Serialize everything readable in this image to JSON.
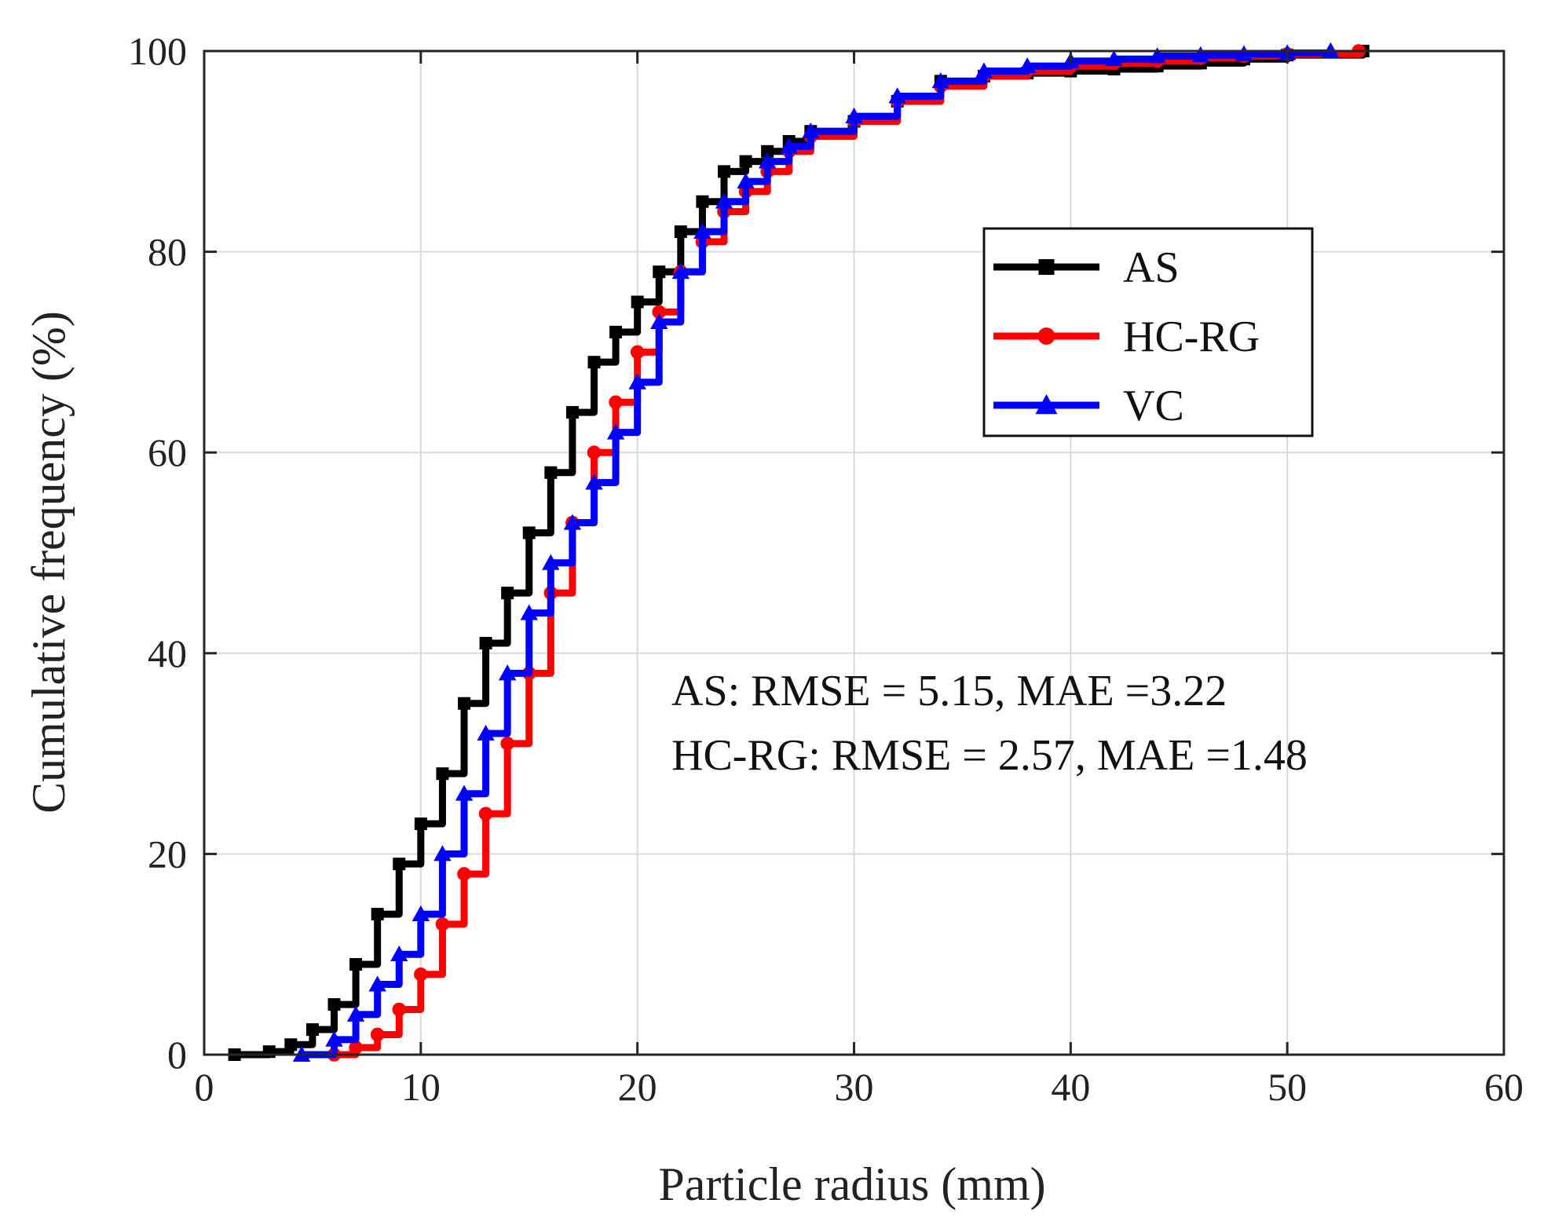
{
  "chart_data": {
    "type": "line",
    "title": "",
    "xlabel": "Particle radius (mm)",
    "ylabel": "Cumulative frequency (%)",
    "xlim": [
      0,
      60
    ],
    "ylim": [
      0,
      100
    ],
    "xticks": [
      "0",
      "10",
      "20",
      "30",
      "40",
      "50",
      "60"
    ],
    "yticks": [
      "0",
      "20",
      "40",
      "60",
      "80",
      "100"
    ],
    "grid": true,
    "legend_position": "upper-right",
    "series": [
      {
        "name": "AS",
        "color": "#000000",
        "marker": "square",
        "x": [
          1.4,
          3,
          4,
          5,
          6,
          7,
          8,
          9,
          10,
          11,
          12,
          13,
          14,
          15,
          16,
          17,
          18,
          19,
          20,
          21,
          22,
          23,
          24,
          25,
          26,
          27,
          28,
          30,
          32,
          34,
          36,
          38,
          40,
          42,
          44,
          46,
          48,
          50,
          53.5
        ],
        "values": [
          0,
          0.3,
          1,
          2.5,
          5,
          9,
          14,
          19,
          23,
          28,
          35,
          41,
          46,
          52,
          58,
          64,
          69,
          72,
          75,
          78,
          82,
          85,
          88,
          89,
          90,
          91,
          92,
          93,
          95,
          97,
          97.5,
          97.8,
          98,
          98.2,
          98.5,
          98.8,
          99.2,
          99.6,
          100
        ]
      },
      {
        "name": "HC-RG",
        "color": "#ff0000",
        "marker": "circle",
        "x": [
          6,
          7,
          8,
          9,
          10,
          11,
          12,
          13,
          14,
          15,
          16,
          17,
          18,
          19,
          20,
          21,
          22,
          23,
          24,
          25,
          26,
          27,
          28,
          30,
          32,
          34,
          36,
          38,
          40,
          42,
          44,
          46,
          48,
          50,
          53.3
        ],
        "values": [
          0,
          0.7,
          2,
          4.5,
          8,
          13,
          18,
          24,
          31,
          38,
          46,
          53,
          60,
          65,
          70,
          74,
          78,
          81,
          84,
          86,
          88,
          90,
          91.5,
          93,
          95,
          96.5,
          97.5,
          98,
          98.5,
          98.8,
          99,
          99.3,
          99.5,
          99.7,
          100
        ]
      },
      {
        "name": "VC",
        "color": "#0000ff",
        "marker": "triangle",
        "x": [
          4.5,
          6,
          7,
          8,
          9,
          10,
          11,
          12,
          13,
          14,
          15,
          16,
          17,
          18,
          19,
          20,
          21,
          22,
          23,
          24,
          25,
          26,
          27,
          28,
          30,
          32,
          34,
          36,
          38,
          40,
          42,
          44,
          46,
          48,
          50,
          52
        ],
        "values": [
          0,
          1.5,
          4,
          7,
          10,
          14,
          20,
          26,
          32,
          38,
          44,
          49,
          53,
          57,
          62,
          67,
          73,
          78,
          82,
          85,
          87,
          89,
          90.5,
          92,
          93.5,
          95.5,
          97,
          98,
          98.5,
          99,
          99.2,
          99.5,
          99.6,
          99.7,
          99.8,
          100
        ]
      }
    ],
    "annotations": [
      "AS: RMSE = 5.15, MAE =3.22",
      "HC-RG: RMSE = 2.57, MAE =1.48"
    ]
  }
}
